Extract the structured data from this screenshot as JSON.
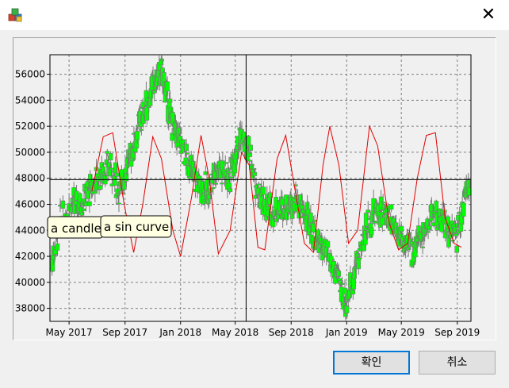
{
  "window": {
    "close_glyph": "✕",
    "app_icon": "app-cubes-icon"
  },
  "buttons": {
    "ok_label": "확인",
    "cancel_label": "취소"
  },
  "annotations": {
    "candle_label": "a candle",
    "sin_label": "a sin curve"
  },
  "crosshair": {
    "x_date": "2018-05-25",
    "y_value": 47900
  },
  "colors": {
    "candle": "#00ff00",
    "candle_outline": "#7a7a7a",
    "sin": "#e00000",
    "grid": "#808080",
    "tooltip_bg": "#ffffe1"
  },
  "chart_data": {
    "type": "candlestick",
    "title": "",
    "xlabel": "",
    "ylabel": "",
    "ylim": [
      37000,
      57500
    ],
    "xlim": [
      "2017-03-20",
      "2019-10-01"
    ],
    "grid": true,
    "x_ticks": [
      "May 2017",
      "Sep 2017",
      "Jan 2018",
      "May 2018",
      "Sep 2018",
      "Jan 2019",
      "May 2019",
      "Sep 2019"
    ],
    "y_ticks": [
      38000,
      40000,
      42000,
      44000,
      46000,
      48000,
      50000,
      52000,
      54000,
      56000
    ],
    "candle_trend": [
      {
        "date": "2017-03-20",
        "close": 41000
      },
      {
        "date": "2017-04-10",
        "close": 44500
      },
      {
        "date": "2017-05-01",
        "close": 45800
      },
      {
        "date": "2017-06-01",
        "close": 46200
      },
      {
        "date": "2017-07-01",
        "close": 48000
      },
      {
        "date": "2017-08-01",
        "close": 49000
      },
      {
        "date": "2017-08-20",
        "close": 47000
      },
      {
        "date": "2017-09-10",
        "close": 49500
      },
      {
        "date": "2017-10-01",
        "close": 52000
      },
      {
        "date": "2017-11-01",
        "close": 55000
      },
      {
        "date": "2017-11-20",
        "close": 56200
      },
      {
        "date": "2017-12-15",
        "close": 52000
      },
      {
        "date": "2018-01-10",
        "close": 50000
      },
      {
        "date": "2018-02-01",
        "close": 48000
      },
      {
        "date": "2018-03-01",
        "close": 47000
      },
      {
        "date": "2018-03-25",
        "close": 49000
      },
      {
        "date": "2018-04-20",
        "close": 48000
      },
      {
        "date": "2018-05-10",
        "close": 51500
      },
      {
        "date": "2018-06-01",
        "close": 50000
      },
      {
        "date": "2018-06-20",
        "close": 46500
      },
      {
        "date": "2018-07-20",
        "close": 45500
      },
      {
        "date": "2018-08-20",
        "close": 45800
      },
      {
        "date": "2018-09-10",
        "close": 46500
      },
      {
        "date": "2018-10-10",
        "close": 44500
      },
      {
        "date": "2018-11-10",
        "close": 42500
      },
      {
        "date": "2018-12-10",
        "close": 40500
      },
      {
        "date": "2018-12-31",
        "close": 38300
      },
      {
        "date": "2019-01-20",
        "close": 41000
      },
      {
        "date": "2019-02-15",
        "close": 44500
      },
      {
        "date": "2019-03-10",
        "close": 45500
      },
      {
        "date": "2019-04-10",
        "close": 45000
      },
      {
        "date": "2019-05-05",
        "close": 43000
      },
      {
        "date": "2019-05-25",
        "close": 42500
      },
      {
        "date": "2019-06-20",
        "close": 44000
      },
      {
        "date": "2019-07-15",
        "close": 45500
      },
      {
        "date": "2019-08-10",
        "close": 44000
      },
      {
        "date": "2019-08-31",
        "close": 43500
      },
      {
        "date": "2019-09-20",
        "close": 47000
      },
      {
        "date": "2019-10-01",
        "close": 48500
      }
    ],
    "sin_curve": [
      {
        "date": "2017-06-20",
        "value": 47000
      },
      {
        "date": "2017-07-15",
        "value": 51200
      },
      {
        "date": "2017-08-05",
        "value": 51500
      },
      {
        "date": "2017-08-30",
        "value": 46000
      },
      {
        "date": "2017-09-20",
        "value": 42300
      },
      {
        "date": "2017-10-10",
        "value": 46000
      },
      {
        "date": "2017-11-01",
        "value": 51200
      },
      {
        "date": "2017-11-20",
        "value": 49500
      },
      {
        "date": "2017-12-15",
        "value": 44000
      },
      {
        "date": "2018-01-01",
        "value": 42000
      },
      {
        "date": "2018-01-25",
        "value": 46500
      },
      {
        "date": "2018-02-15",
        "value": 51300
      },
      {
        "date": "2018-03-05",
        "value": 48000
      },
      {
        "date": "2018-03-25",
        "value": 42200
      },
      {
        "date": "2018-04-20",
        "value": 44000
      },
      {
        "date": "2018-05-15",
        "value": 50000
      },
      {
        "date": "2018-06-01",
        "value": 49000
      },
      {
        "date": "2018-06-20",
        "value": 42700
      },
      {
        "date": "2018-07-05",
        "value": 42500
      },
      {
        "date": "2018-08-01",
        "value": 49500
      },
      {
        "date": "2018-08-20",
        "value": 51300
      },
      {
        "date": "2018-09-10",
        "value": 47000
      },
      {
        "date": "2018-09-30",
        "value": 43000
      },
      {
        "date": "2018-10-20",
        "value": 42300
      },
      {
        "date": "2018-11-10",
        "value": 49000
      },
      {
        "date": "2018-11-25",
        "value": 52000
      },
      {
        "date": "2018-12-15",
        "value": 49000
      },
      {
        "date": "2019-01-05",
        "value": 43000
      },
      {
        "date": "2019-01-25",
        "value": 44000
      },
      {
        "date": "2019-02-20",
        "value": 52000
      },
      {
        "date": "2019-03-10",
        "value": 50500
      },
      {
        "date": "2019-04-05",
        "value": 44500
      },
      {
        "date": "2019-04-25",
        "value": 42500
      },
      {
        "date": "2019-05-15",
        "value": 43000
      },
      {
        "date": "2019-06-05",
        "value": 48000
      },
      {
        "date": "2019-06-25",
        "value": 51300
      },
      {
        "date": "2019-07-15",
        "value": 51500
      },
      {
        "date": "2019-08-05",
        "value": 45000
      },
      {
        "date": "2019-08-25",
        "value": 43000
      },
      {
        "date": "2019-09-10",
        "value": 42700
      }
    ]
  }
}
